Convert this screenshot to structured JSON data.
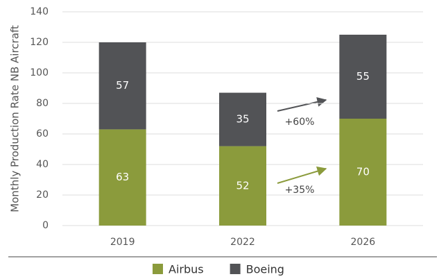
{
  "chart_data": {
    "type": "stacked-bar",
    "y_label": "Monthly Production Rate NB Aircraft",
    "categories": [
      "2019",
      "2022",
      "2026"
    ],
    "series": [
      {
        "name": "Airbus",
        "color": "#8b9b3c",
        "values": [
          63,
          52,
          70
        ]
      },
      {
        "name": "Boeing",
        "color": "#525356",
        "values": [
          57,
          35,
          55
        ]
      }
    ],
    "ylim": [
      0,
      140
    ],
    "yticks": [
      0,
      20,
      40,
      60,
      80,
      100,
      120,
      140
    ],
    "grid": true,
    "annotations": [
      "+60%",
      "+35%"
    ]
  }
}
